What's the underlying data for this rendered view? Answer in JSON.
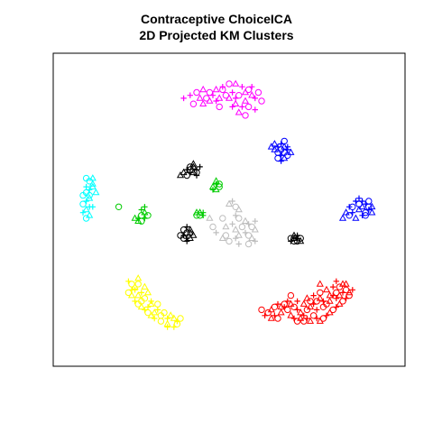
{
  "chart_data": {
    "type": "scatter",
    "title": "Contraceptive ChoiceICA",
    "subtitle": "2D Projected KM Clusters",
    "xlabel": "",
    "ylabel": "",
    "xlim": [
      0,
      100
    ],
    "ylim": [
      0,
      100
    ],
    "grid": false,
    "legend": "none",
    "axes_visible": false,
    "series": [
      {
        "color": "#FF00FF",
        "points": [
          [
            44,
            91
          ],
          [
            46,
            92
          ],
          [
            48,
            93
          ],
          [
            50,
            94
          ],
          [
            52,
            94
          ],
          [
            54,
            93
          ],
          [
            56,
            92
          ],
          [
            57,
            90
          ],
          [
            58,
            89
          ],
          [
            60,
            88
          ],
          [
            55,
            88
          ],
          [
            52,
            89
          ],
          [
            49,
            90
          ],
          [
            47,
            89
          ],
          [
            45,
            90
          ],
          [
            43,
            89
          ],
          [
            41,
            89
          ],
          [
            38,
            90
          ],
          [
            40,
            91
          ],
          [
            42,
            92
          ],
          [
            51,
            91
          ],
          [
            53,
            90
          ],
          [
            55,
            91
          ],
          [
            57,
            93
          ],
          [
            59,
            91
          ],
          [
            52,
            87
          ],
          [
            54,
            86
          ],
          [
            56,
            86
          ],
          [
            53,
            84
          ],
          [
            51,
            86
          ],
          [
            47,
            86
          ],
          [
            44,
            88
          ],
          [
            46,
            88
          ],
          [
            48,
            92
          ],
          [
            50,
            89
          ],
          [
            36,
            89
          ],
          [
            39,
            87
          ],
          [
            42,
            87
          ],
          [
            58,
            85
          ],
          [
            55,
            83
          ]
        ]
      },
      {
        "color": "#0000FF",
        "points": [
          [
            64,
            73
          ],
          [
            65,
            72
          ],
          [
            66,
            71
          ],
          [
            67,
            72
          ],
          [
            68,
            71
          ],
          [
            68,
            69
          ],
          [
            67,
            68
          ],
          [
            66,
            69
          ],
          [
            65,
            70
          ],
          [
            64,
            71
          ],
          [
            66,
            73
          ],
          [
            67,
            70
          ],
          [
            69,
            70
          ],
          [
            68,
            72
          ],
          [
            65,
            68
          ],
          [
            63,
            72
          ],
          [
            66,
            67
          ],
          [
            67,
            74
          ]
        ]
      },
      {
        "color": "#0000FF",
        "points": [
          [
            89,
            53
          ],
          [
            90,
            52
          ],
          [
            91,
            51
          ],
          [
            92,
            52
          ],
          [
            93,
            51
          ],
          [
            94,
            51
          ],
          [
            93,
            50
          ],
          [
            92,
            49
          ],
          [
            90,
            50
          ],
          [
            88,
            49
          ],
          [
            87,
            48
          ],
          [
            89,
            47
          ],
          [
            91,
            48
          ],
          [
            92,
            48
          ],
          [
            94,
            49
          ],
          [
            90,
            54
          ],
          [
            88,
            51
          ],
          [
            86,
            49
          ],
          [
            91,
            53
          ],
          [
            93,
            53
          ],
          [
            85,
            47
          ],
          [
            87,
            51
          ]
        ]
      },
      {
        "color": "#00FFFF",
        "points": [
          [
            7,
            60
          ],
          [
            8,
            59
          ],
          [
            7,
            57
          ],
          [
            6,
            56
          ],
          [
            7,
            54
          ],
          [
            6,
            53
          ],
          [
            5,
            52
          ],
          [
            6,
            50
          ],
          [
            5,
            49
          ],
          [
            6,
            47
          ],
          [
            7,
            48
          ],
          [
            8,
            51
          ],
          [
            7,
            55
          ],
          [
            8,
            58
          ],
          [
            6,
            58
          ],
          [
            5,
            55
          ],
          [
            9,
            56
          ],
          [
            7,
            51
          ],
          [
            6,
            61
          ],
          [
            8,
            61
          ]
        ]
      },
      {
        "color": "#000000",
        "points": [
          [
            36,
            63
          ],
          [
            37,
            64
          ],
          [
            38,
            64
          ],
          [
            39,
            65
          ],
          [
            40,
            64
          ],
          [
            40,
            63
          ],
          [
            39,
            63
          ],
          [
            38,
            63
          ],
          [
            37,
            62
          ],
          [
            39,
            66
          ],
          [
            41,
            65
          ],
          [
            38,
            65
          ],
          [
            35,
            62
          ],
          [
            40,
            62
          ]
        ]
      },
      {
        "color": "#000000",
        "points": [
          [
            36,
            41
          ],
          [
            37,
            42
          ],
          [
            38,
            42
          ],
          [
            37,
            40
          ],
          [
            36,
            40
          ],
          [
            38,
            40
          ],
          [
            37,
            39
          ],
          [
            36,
            43
          ],
          [
            38,
            43
          ],
          [
            37,
            44
          ],
          [
            35,
            41
          ],
          [
            39,
            41
          ]
        ]
      },
      {
        "color": "#000000",
        "points": [
          [
            69,
            40
          ],
          [
            70,
            40
          ],
          [
            71,
            40
          ],
          [
            72,
            40
          ],
          [
            70,
            41
          ],
          [
            71,
            41
          ],
          [
            70,
            39
          ],
          [
            72,
            39
          ],
          [
            69,
            39
          ],
          [
            71,
            39
          ]
        ]
      },
      {
        "color": "#00CC00",
        "points": [
          [
            45,
            58
          ],
          [
            46,
            59
          ],
          [
            47,
            58
          ],
          [
            46,
            57
          ],
          [
            45,
            57
          ],
          [
            47,
            59
          ],
          [
            46,
            60
          ]
        ]
      },
      {
        "color": "#00CC00",
        "points": [
          [
            22,
            47
          ],
          [
            23,
            48
          ],
          [
            24,
            49
          ],
          [
            24,
            47
          ],
          [
            23,
            46
          ],
          [
            22,
            46
          ],
          [
            23,
            50
          ],
          [
            25,
            48
          ],
          [
            21,
            47
          ],
          [
            24,
            51
          ],
          [
            16,
            51
          ]
        ]
      },
      {
        "color": "#00CC00",
        "points": [
          [
            40,
            48
          ],
          [
            41,
            49
          ],
          [
            42,
            49
          ],
          [
            41,
            48
          ],
          [
            40,
            49
          ],
          [
            42,
            48
          ]
        ]
      },
      {
        "color": "#BEBEBE",
        "points": [
          [
            50,
            52
          ],
          [
            51,
            53
          ],
          [
            52,
            51
          ],
          [
            53,
            50
          ],
          [
            52,
            48
          ],
          [
            53,
            47
          ],
          [
            55,
            46
          ],
          [
            56,
            45
          ],
          [
            57,
            44
          ],
          [
            58,
            43
          ],
          [
            55,
            42
          ],
          [
            56,
            41
          ],
          [
            53,
            41
          ],
          [
            52,
            40
          ],
          [
            50,
            39
          ],
          [
            48,
            40
          ],
          [
            46,
            42
          ],
          [
            45,
            44
          ],
          [
            49,
            44
          ],
          [
            51,
            45
          ],
          [
            54,
            44
          ],
          [
            57,
            40
          ],
          [
            58,
            39
          ],
          [
            48,
            47
          ],
          [
            44,
            47
          ],
          [
            53,
            38
          ],
          [
            56,
            38
          ],
          [
            52,
            43
          ],
          [
            58,
            46
          ],
          [
            49,
            41
          ]
        ]
      },
      {
        "color": "#FFFF00",
        "points": [
          [
            19,
            25
          ],
          [
            20,
            24
          ],
          [
            21,
            23
          ],
          [
            20,
            22
          ],
          [
            19,
            21
          ],
          [
            20,
            20
          ],
          [
            21,
            18
          ],
          [
            22,
            17
          ],
          [
            23,
            16
          ],
          [
            24,
            15
          ],
          [
            25,
            14
          ],
          [
            26,
            13
          ],
          [
            27,
            12
          ],
          [
            29,
            11
          ],
          [
            31,
            10
          ],
          [
            33,
            9
          ],
          [
            34,
            10
          ],
          [
            33,
            12
          ],
          [
            31,
            12
          ],
          [
            29,
            13
          ],
          [
            27,
            14
          ],
          [
            25,
            16
          ],
          [
            23,
            18
          ],
          [
            22,
            20
          ],
          [
            21,
            22
          ],
          [
            22,
            24
          ],
          [
            24,
            23
          ],
          [
            23,
            21
          ],
          [
            24,
            19
          ],
          [
            26,
            17
          ],
          [
            28,
            15
          ],
          [
            30,
            14
          ],
          [
            32,
            13
          ],
          [
            34,
            11
          ],
          [
            28,
            17
          ],
          [
            25,
            21
          ],
          [
            31,
            9
          ],
          [
            35,
            12
          ],
          [
            22,
            26
          ],
          [
            26,
            18
          ]
        ]
      },
      {
        "color": "#FF0000",
        "points": [
          [
            62,
            14
          ],
          [
            63,
            15
          ],
          [
            64,
            13
          ],
          [
            65,
            12
          ],
          [
            66,
            14
          ],
          [
            67,
            16
          ],
          [
            68,
            15
          ],
          [
            69,
            13
          ],
          [
            70,
            12
          ],
          [
            71,
            11
          ],
          [
            72,
            12
          ],
          [
            73,
            13
          ],
          [
            74,
            15
          ],
          [
            75,
            16
          ],
          [
            76,
            17
          ],
          [
            77,
            18
          ],
          [
            78,
            19
          ],
          [
            79,
            18
          ],
          [
            80,
            17
          ],
          [
            81,
            18
          ],
          [
            82,
            20
          ],
          [
            83,
            21
          ],
          [
            84,
            20
          ],
          [
            85,
            21
          ],
          [
            86,
            22
          ],
          [
            87,
            21
          ],
          [
            86,
            19
          ],
          [
            85,
            18
          ],
          [
            84,
            17
          ],
          [
            83,
            16
          ],
          [
            82,
            15
          ],
          [
            81,
            14
          ],
          [
            80,
            13
          ],
          [
            79,
            12
          ],
          [
            78,
            11
          ],
          [
            77,
            12
          ],
          [
            76,
            13
          ],
          [
            75,
            11
          ],
          [
            74,
            12
          ],
          [
            73,
            11
          ],
          [
            72,
            14
          ],
          [
            71,
            15
          ],
          [
            70,
            16
          ],
          [
            69,
            17
          ],
          [
            68,
            18
          ],
          [
            67,
            17
          ],
          [
            66,
            16
          ],
          [
            65,
            17
          ],
          [
            64,
            16
          ],
          [
            63,
            12
          ],
          [
            61,
            13
          ],
          [
            60,
            15
          ],
          [
            74,
            19
          ],
          [
            76,
            20
          ],
          [
            78,
            21
          ],
          [
            80,
            22
          ],
          [
            82,
            23
          ],
          [
            84,
            23
          ],
          [
            86,
            24
          ],
          [
            88,
            22
          ],
          [
            87,
            20
          ],
          [
            85,
            24
          ],
          [
            77,
            15
          ],
          [
            79,
            16
          ],
          [
            81,
            20
          ],
          [
            83,
            19
          ],
          [
            75,
            18
          ],
          [
            73,
            17
          ],
          [
            71,
            18
          ],
          [
            69,
            20
          ],
          [
            78,
            24
          ],
          [
            83,
            25
          ]
        ]
      }
    ]
  }
}
